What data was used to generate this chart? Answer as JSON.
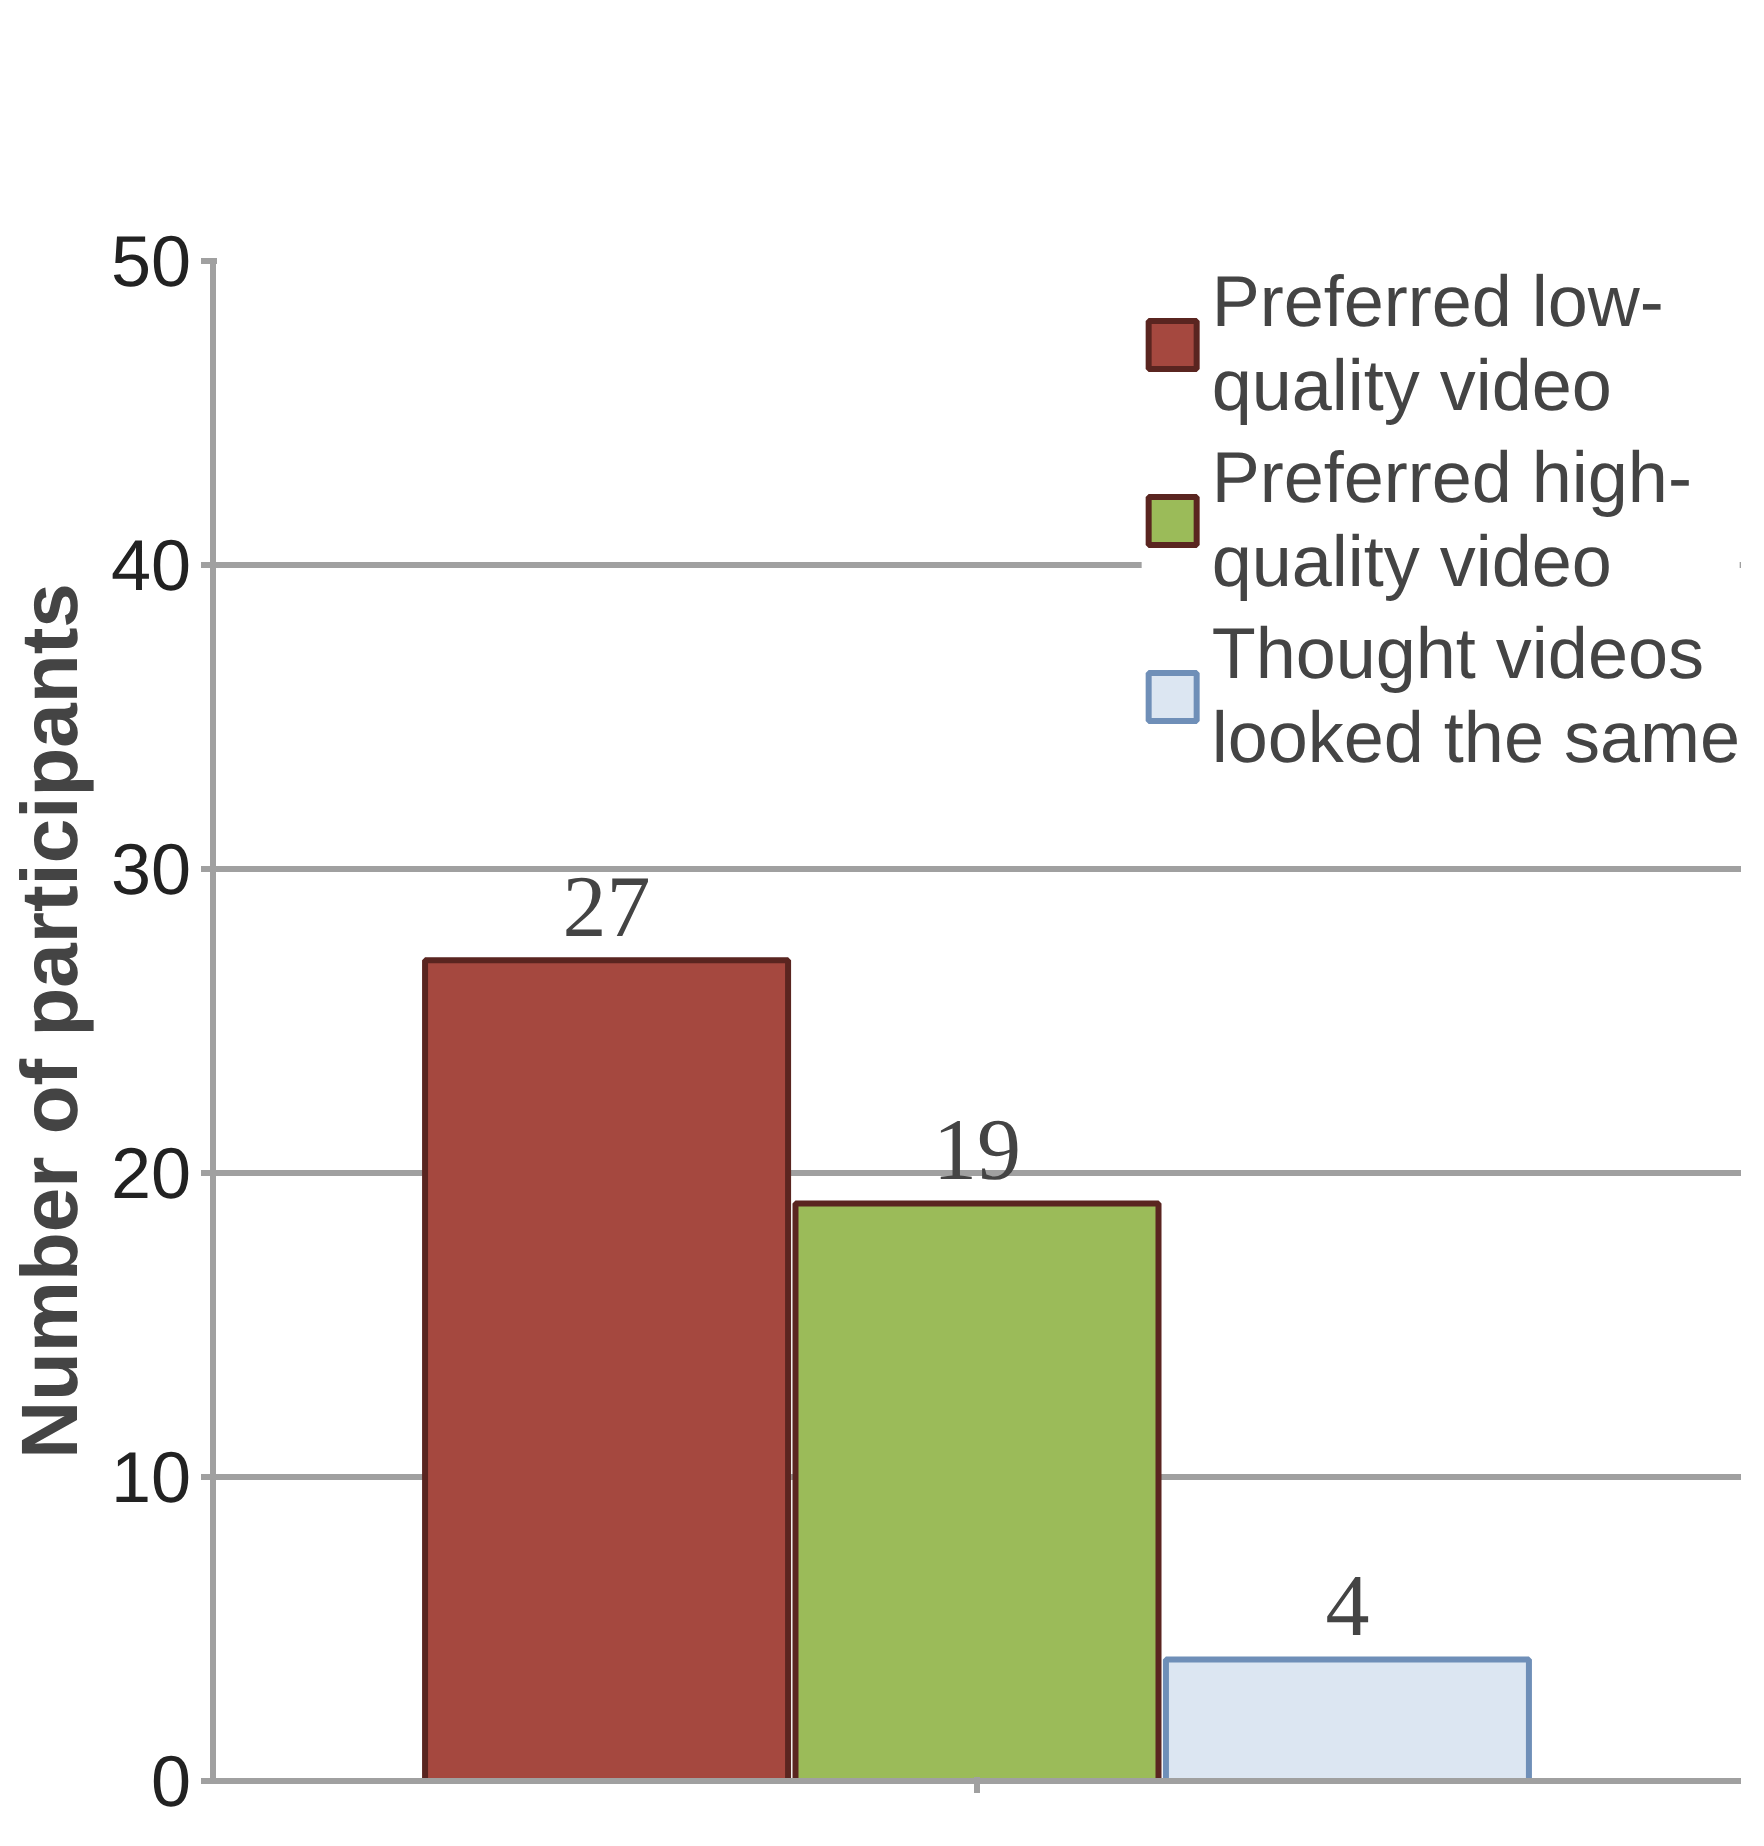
{
  "chart_data": {
    "type": "bar",
    "ylabel": "Number of participants",
    "categories": [
      null
    ],
    "series": [
      {
        "name": "Preferred low-quality video",
        "color": "#a5483f",
        "values": [
          27
        ]
      },
      {
        "name": "Preferred high-quality video",
        "color": "#9bbb59",
        "values": [
          19
        ]
      },
      {
        "name": "Thought videos looked the same",
        "color": "#dce6f2",
        "values": [
          4
        ]
      }
    ],
    "ylim": [
      0,
      50
    ],
    "yticks": [
      0,
      10,
      20,
      30,
      40,
      50
    ],
    "grid": "y",
    "legend": "top right",
    "data_labels": true
  }
}
